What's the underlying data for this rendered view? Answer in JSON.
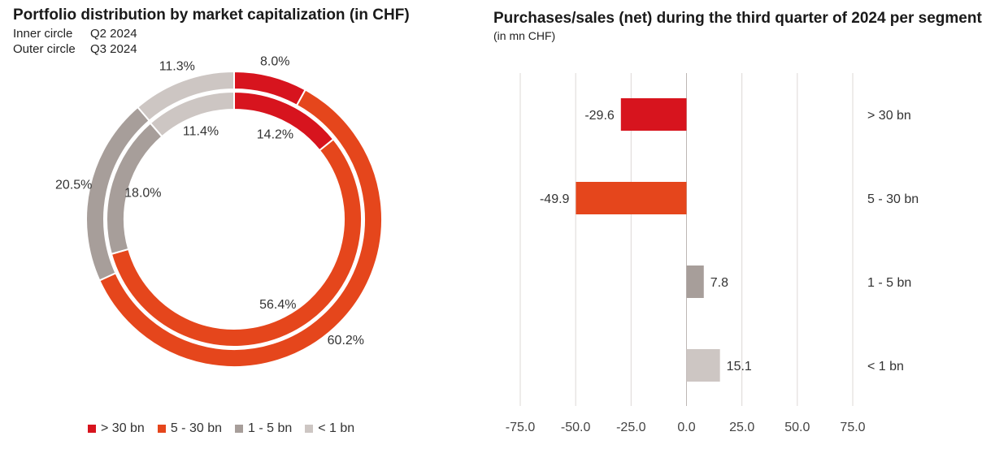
{
  "left_chart": {
    "title": "Portfolio distribution by market capitalization (in CHF)",
    "inner_label": "Inner circle",
    "inner_period": "Q2 2024",
    "outer_label": "Outer circle",
    "outer_period": "Q3 2024"
  },
  "right_chart": {
    "title": "Purchases/sales (net) during the third quarter of 2024 per segment",
    "subtitle": "(in mn CHF)"
  },
  "colors": {
    "gt30": "#d7141e",
    "b5_30": "#e5461c",
    "b1_5": "#a79e9a",
    "lt1": "#cdc6c3"
  },
  "legend": [
    {
      "label": "> 30 bn",
      "color": "#d7141e"
    },
    {
      "label": "5 - 30 bn",
      "color": "#e5461c"
    },
    {
      "label": "1 - 5 bn",
      "color": "#a79e9a"
    },
    {
      "label": "< 1 bn",
      "color": "#cdc6c3"
    }
  ],
  "chart_data": [
    {
      "type": "pie",
      "subtype": "double-donut",
      "title": "Portfolio distribution by market capitalization (in CHF)",
      "categories": [
        "> 30 bn",
        "5 - 30 bn",
        "1 - 5 bn",
        "< 1 bn"
      ],
      "series": [
        {
          "name": "Q2 2024",
          "ring": "inner",
          "values": [
            14.2,
            56.4,
            18.0,
            11.4
          ],
          "labels": [
            "14.2%",
            "56.4%",
            "18.0%",
            "11.4%"
          ]
        },
        {
          "name": "Q3 2024",
          "ring": "outer",
          "values": [
            8.0,
            60.2,
            20.5,
            11.3
          ],
          "labels": [
            "8.0%",
            "60.2%",
            "20.5%",
            "11.3%"
          ]
        }
      ],
      "legend_position": "bottom"
    },
    {
      "type": "bar",
      "orientation": "horizontal",
      "title": "Purchases/sales (net) during the third quarter of 2024 per segment",
      "unit": "in mn CHF",
      "categories": [
        "> 30 bn",
        "5 - 30 bn",
        "1 - 5 bn",
        "< 1 bn"
      ],
      "values": [
        -29.6,
        -49.9,
        7.8,
        15.1
      ],
      "value_labels": [
        "-29.6",
        "-49.9",
        "7.8",
        "15.1"
      ],
      "xlim": [
        -75,
        75
      ],
      "xticks": [
        -75,
        -50,
        -25,
        0,
        25,
        50,
        75
      ],
      "xtick_labels": [
        "-75.0",
        "-50.0",
        "-25.0",
        "0.0",
        "25.0",
        "50.0",
        "75.0"
      ],
      "grid": true
    }
  ]
}
